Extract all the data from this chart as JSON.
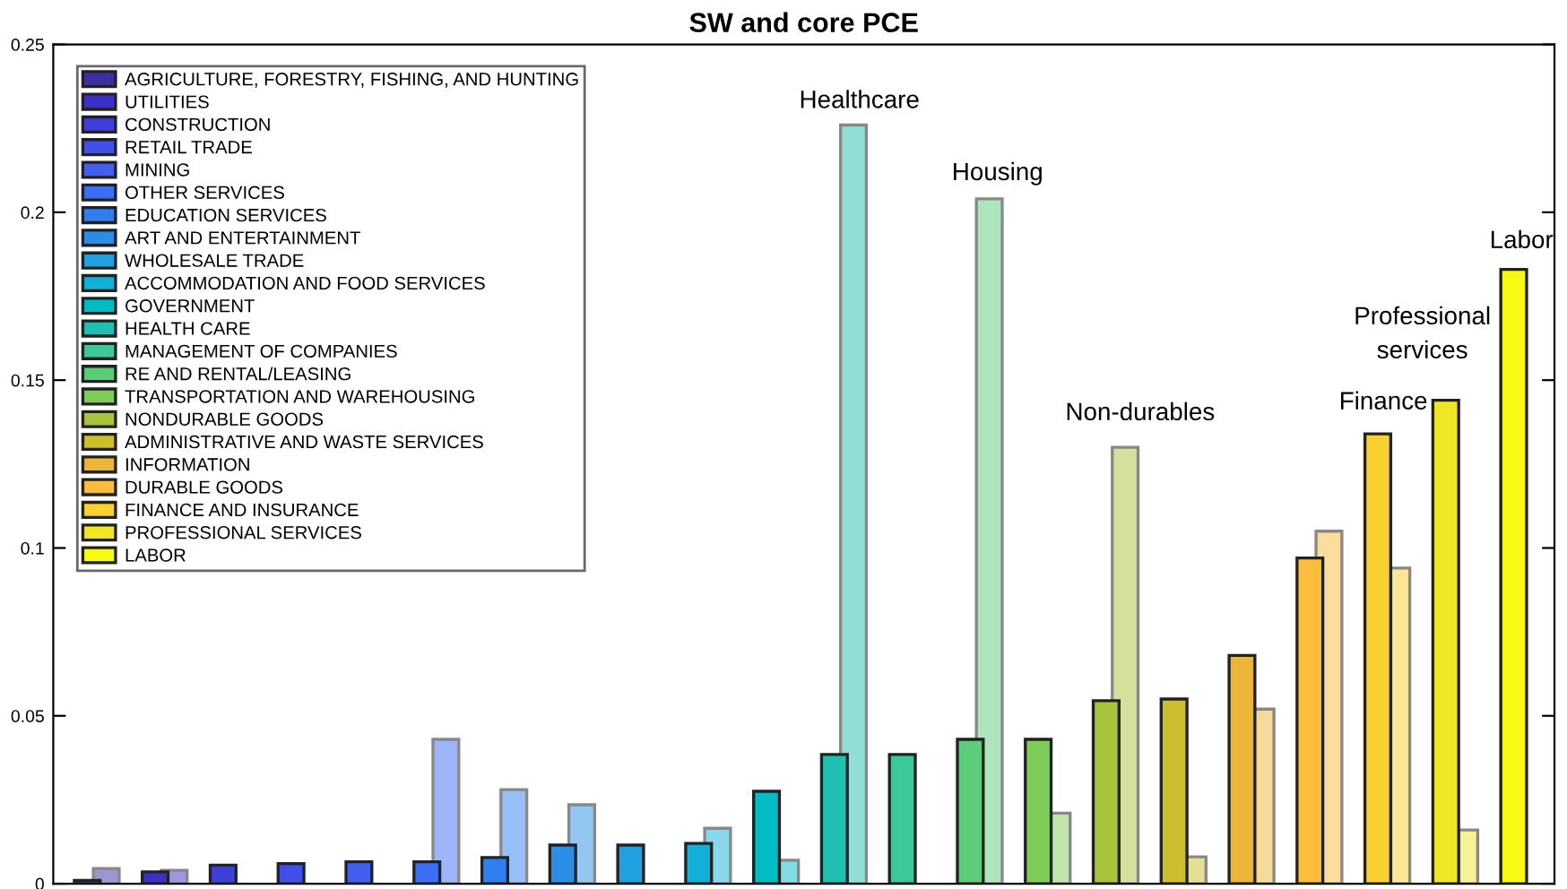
{
  "chart_data": {
    "type": "bar",
    "title": "SW and core PCE",
    "categories": [
      null,
      null,
      null,
      null,
      null,
      null,
      null,
      null,
      null,
      null,
      null,
      null,
      null,
      null,
      null,
      null,
      null,
      null,
      null,
      null,
      null,
      null
    ],
    "series": [
      {
        "name": "AGRICULTURE, FORESTRY, FISHING, AND HUNTING",
        "color": "#3b2fa3",
        "values": [
          0.001,
          null,
          null,
          null,
          null,
          null,
          null,
          null,
          null,
          null,
          null,
          null,
          null,
          null,
          null,
          null,
          null,
          null,
          null,
          null,
          null,
          null
        ]
      },
      {
        "name": "UTILITIES",
        "color": "#3d30c8",
        "values": [
          null,
          0.0035,
          null,
          null,
          null,
          null,
          null,
          null,
          null,
          null,
          null,
          null,
          null,
          null,
          null,
          null,
          null,
          null,
          null,
          null,
          null,
          null
        ]
      },
      {
        "name": "CONSTRUCTION",
        "color": "#3f3fdc",
        "values": [
          null,
          null,
          0.0055,
          null,
          null,
          null,
          null,
          null,
          null,
          null,
          null,
          null,
          null,
          null,
          null,
          null,
          null,
          null,
          null,
          null,
          null,
          null
        ]
      },
      {
        "name": "RETAIL TRADE",
        "color": "#4150e8",
        "values": [
          null,
          null,
          null,
          0.006,
          null,
          null,
          null,
          null,
          null,
          null,
          null,
          null,
          null,
          null,
          null,
          null,
          null,
          null,
          null,
          null,
          null,
          null
        ]
      },
      {
        "name": "MINING",
        "color": "#4160f0",
        "values": [
          null,
          null,
          null,
          null,
          0.0065,
          null,
          null,
          null,
          null,
          null,
          null,
          null,
          null,
          null,
          null,
          null,
          null,
          null,
          null,
          null,
          null,
          null
        ]
      },
      {
        "name": "OTHER SERVICES",
        "color": "#3b6df5",
        "values": [
          null,
          null,
          null,
          null,
          null,
          0.0065,
          null,
          null,
          null,
          null,
          null,
          null,
          null,
          null,
          null,
          null,
          null,
          null,
          null,
          null,
          null,
          null
        ]
      },
      {
        "name": "EDUCATION SERVICES",
        "color": "#2f7ff0",
        "values": [
          null,
          null,
          null,
          null,
          null,
          null,
          0.0078,
          null,
          null,
          null,
          null,
          null,
          null,
          null,
          null,
          null,
          null,
          null,
          null,
          null,
          null,
          null
        ]
      },
      {
        "name": "ART AND ENTERTAINMENT",
        "color": "#2a8ee6",
        "values": [
          null,
          null,
          null,
          null,
          null,
          null,
          null,
          0.0115,
          null,
          null,
          null,
          null,
          null,
          null,
          null,
          null,
          null,
          null,
          null,
          null,
          null,
          null
        ]
      },
      {
        "name": "WHOLESALE TRADE",
        "color": "#20a0e0",
        "values": [
          null,
          null,
          null,
          null,
          null,
          null,
          null,
          null,
          0.0115,
          null,
          null,
          null,
          null,
          null,
          null,
          null,
          null,
          null,
          null,
          null,
          null,
          null
        ]
      },
      {
        "name": "ACCOMMODATION AND FOOD SERVICES",
        "color": "#12b0d8",
        "values": [
          null,
          null,
          null,
          null,
          null,
          null,
          null,
          null,
          null,
          0.012,
          null,
          null,
          null,
          null,
          null,
          null,
          null,
          null,
          null,
          null,
          null,
          null
        ]
      },
      {
        "name": "GOVERNMENT",
        "color": "#00bcc4",
        "values": [
          null,
          null,
          null,
          null,
          null,
          null,
          null,
          null,
          null,
          null,
          0.0275,
          null,
          null,
          null,
          null,
          null,
          null,
          null,
          null,
          null,
          null,
          null
        ]
      },
      {
        "name": "HEALTH CARE",
        "color": "#20c0b0",
        "values": [
          null,
          null,
          null,
          null,
          null,
          null,
          null,
          null,
          null,
          null,
          null,
          0.0385,
          null,
          null,
          null,
          null,
          null,
          null,
          null,
          null,
          null,
          null
        ]
      },
      {
        "name": "MANAGEMENT OF COMPANIES",
        "color": "#3cc898",
        "values": [
          null,
          null,
          null,
          null,
          null,
          null,
          null,
          null,
          null,
          null,
          null,
          null,
          0.0385,
          null,
          null,
          null,
          null,
          null,
          null,
          null,
          null,
          null
        ]
      },
      {
        "name": "RE AND RENTAL/LEASING",
        "color": "#5ccc7a",
        "values": [
          null,
          null,
          null,
          null,
          null,
          null,
          null,
          null,
          null,
          null,
          null,
          null,
          null,
          0.043,
          null,
          null,
          null,
          null,
          null,
          null,
          null,
          null
        ]
      },
      {
        "name": "TRANSPORTATION AND WAREHOUSING",
        "color": "#80cc58",
        "values": [
          null,
          null,
          null,
          null,
          null,
          null,
          null,
          null,
          null,
          null,
          null,
          null,
          null,
          null,
          0.043,
          null,
          null,
          null,
          null,
          null,
          null,
          null
        ]
      },
      {
        "name": "NONDURABLE GOODS",
        "color": "#a8c43c",
        "values": [
          null,
          null,
          null,
          null,
          null,
          null,
          null,
          null,
          null,
          null,
          null,
          null,
          null,
          null,
          null,
          0.0545,
          null,
          null,
          null,
          null,
          null,
          null
        ]
      },
      {
        "name": "ADMINISTRATIVE AND WASTE SERVICES",
        "color": "#ccbe2c",
        "values": [
          null,
          null,
          null,
          null,
          null,
          null,
          null,
          null,
          null,
          null,
          null,
          null,
          null,
          null,
          null,
          null,
          0.055,
          null,
          null,
          null,
          null,
          null
        ]
      },
      {
        "name": "INFORMATION",
        "color": "#ebb53a",
        "values": [
          null,
          null,
          null,
          null,
          null,
          null,
          null,
          null,
          null,
          null,
          null,
          null,
          null,
          null,
          null,
          null,
          null,
          0.068,
          null,
          null,
          null,
          null
        ]
      },
      {
        "name": "DURABLE GOODS",
        "color": "#fcbc3c",
        "values": [
          null,
          null,
          null,
          null,
          null,
          null,
          null,
          null,
          null,
          null,
          null,
          null,
          null,
          null,
          null,
          null,
          null,
          null,
          0.097,
          null,
          null,
          null
        ]
      },
      {
        "name": "FINANCE AND INSURANCE",
        "color": "#f8d030",
        "values": [
          null,
          null,
          null,
          null,
          null,
          null,
          null,
          null,
          null,
          null,
          null,
          null,
          null,
          null,
          null,
          null,
          null,
          null,
          null,
          0.134,
          null,
          null
        ]
      },
      {
        "name": "PROFESSIONAL SERVICES",
        "color": "#f0e628",
        "values": [
          null,
          null,
          null,
          null,
          null,
          null,
          null,
          null,
          null,
          null,
          null,
          null,
          null,
          null,
          null,
          null,
          null,
          null,
          null,
          null,
          0.144,
          null
        ]
      },
      {
        "name": "LABOR",
        "color": "#f9fa14",
        "values": [
          null,
          null,
          null,
          null,
          null,
          null,
          null,
          null,
          null,
          null,
          null,
          null,
          null,
          null,
          null,
          null,
          null,
          null,
          null,
          null,
          null,
          0.183
        ]
      },
      {
        "colors": [
          "#9d97d1",
          "#9e97e3",
          "#9f9fed",
          "#a0a7f3",
          "#a0aff7",
          "#9db6fa",
          "#97bff7",
          "#94c6f2",
          "#8fcfef",
          "#88d7eb",
          "#7fdde1",
          "#8fdfd7",
          "#9de3cb",
          "#ade5bc",
          "#bfe5ab",
          "#d3e19d",
          "#e5de95",
          "#f5da9c",
          "#fddd9d",
          "#fbe797",
          "#f7f293",
          "#fcfc89"
        ],
        "values": [
          0.0045,
          0.004,
          null,
          null,
          null,
          0.043,
          0.028,
          0.0235,
          null,
          0.0165,
          0.007,
          0.226,
          null,
          0.204,
          0.021,
          0.13,
          0.008,
          0.052,
          0.105,
          0.094,
          0.016,
          null
        ]
      }
    ],
    "annotations": [
      "Healthcare",
      "Housing",
      "Non-durables",
      "Finance",
      "Professional\nservices",
      "Labor"
    ],
    "ylim": [
      0,
      0.25
    ],
    "yticks": [
      0,
      0.05,
      {
        "value": 0.1,
        "label": "0.1"
      },
      0.15,
      {
        "value": 0.2,
        "label": "0.2"
      },
      0.25
    ],
    "tick_labels": "y",
    "legend": "top left",
    "grid": false
  }
}
